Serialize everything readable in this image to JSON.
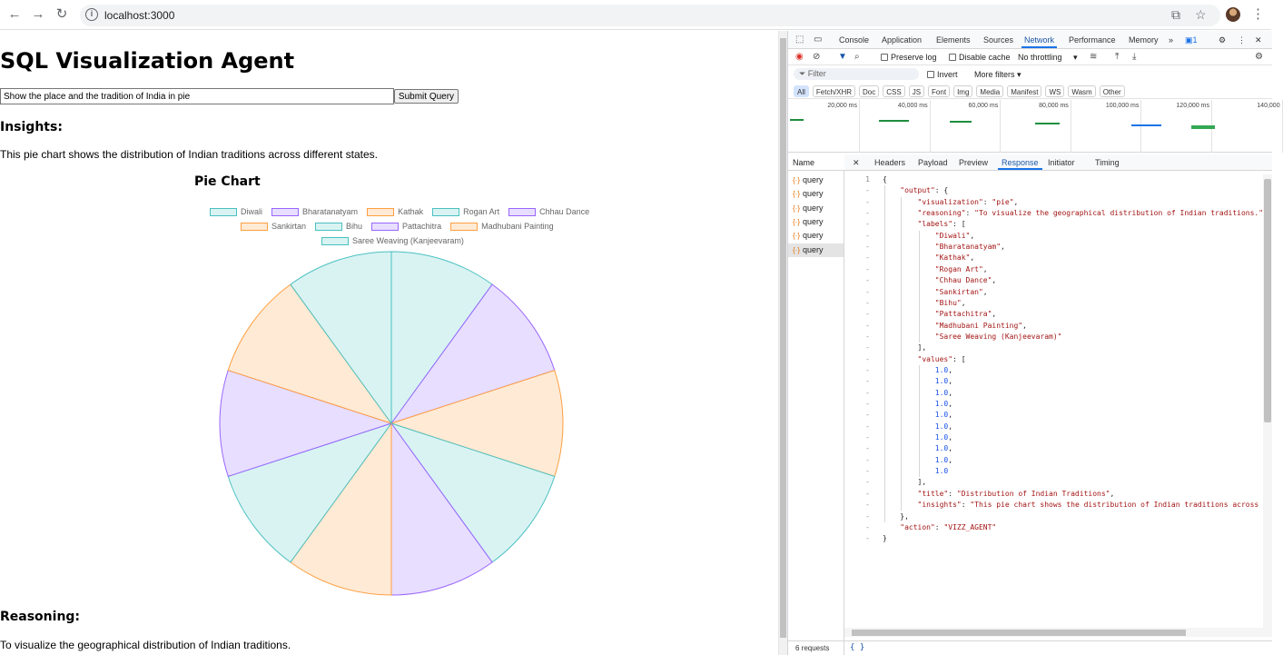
{
  "browser": {
    "url": "localhost:3000"
  },
  "app": {
    "title": "SQL Visualization Agent",
    "query_value": "Show the place and the tradition of India in pie",
    "submit_label": "Submit Query",
    "insights_heading": "Insights:",
    "insights_text": "This pie chart shows the distribution of Indian traditions across different states.",
    "chart_heading": "Pie Chart",
    "reasoning_heading": "Reasoning:",
    "reasoning_text": "To visualize the geographical distribution of Indian traditions."
  },
  "chart_data": {
    "type": "pie",
    "title": "Pie Chart",
    "categories": [
      "Diwali",
      "Bharatanatyam",
      "Kathak",
      "Rogan Art",
      "Chhau Dance",
      "Sankirtan",
      "Bihu",
      "Pattachitra",
      "Madhubani Painting",
      "Saree Weaving (Kanjeevaram)"
    ],
    "values": [
      1.0,
      1.0,
      1.0,
      1.0,
      1.0,
      1.0,
      1.0,
      1.0,
      1.0,
      1.0
    ],
    "legend": "top",
    "colors": {
      "teal_fill": "#d9f3f3",
      "teal_stroke": "#4bc0c0",
      "purple_fill": "#e8deff",
      "purple_stroke": "#9966ff",
      "orange_fill": "#ffead5",
      "orange_stroke": "#ff9f40"
    }
  },
  "devtools": {
    "tabs": [
      "Console",
      "Application",
      "Elements",
      "Sources",
      "Network",
      "Performance",
      "Memory"
    ],
    "active_tab": "Network",
    "issues_count": "1",
    "toolbar": {
      "preserve_log": "Preserve log",
      "disable_cache": "Disable cache",
      "throttling": "No throttling"
    },
    "filter": {
      "placeholder": "Filter",
      "invert": "Invert",
      "more_filters": "More filters"
    },
    "types": [
      "All",
      "Fetch/XHR",
      "Doc",
      "CSS",
      "JS",
      "Font",
      "Img",
      "Media",
      "Manifest",
      "WS",
      "Wasm",
      "Other"
    ],
    "timeline_labels": [
      "20,000 ms",
      "40,000 ms",
      "60,000 ms",
      "80,000 ms",
      "100,000 ms",
      "120,000 ms",
      "140,000"
    ],
    "requests_header": "Name",
    "requests": [
      "query",
      "query",
      "query",
      "query",
      "query",
      "query"
    ],
    "requests_count": "6 requests",
    "response_tabs": [
      "Headers",
      "Payload",
      "Preview",
      "Response",
      "Initiator",
      "Timing"
    ],
    "active_response_tab": "Response",
    "response_lines": [
      {
        "n": "1",
        "text": "{"
      },
      {
        "n": "-",
        "text": "    \"output\": {"
      },
      {
        "n": "-",
        "text": "        \"visualization\": \"pie\","
      },
      {
        "n": "-",
        "text": "        \"reasoning\": \"To visualize the geographical distribution of Indian traditions.\""
      },
      {
        "n": "-",
        "text": "        \"labels\": ["
      },
      {
        "n": "-",
        "text": "            \"Diwali\","
      },
      {
        "n": "-",
        "text": "            \"Bharatanatyam\","
      },
      {
        "n": "-",
        "text": "            \"Kathak\","
      },
      {
        "n": "-",
        "text": "            \"Rogan Art\","
      },
      {
        "n": "-",
        "text": "            \"Chhau Dance\","
      },
      {
        "n": "-",
        "text": "            \"Sankirtan\","
      },
      {
        "n": "-",
        "text": "            \"Bihu\","
      },
      {
        "n": "-",
        "text": "            \"Pattachitra\","
      },
      {
        "n": "-",
        "text": "            \"Madhubani Painting\","
      },
      {
        "n": "-",
        "text": "            \"Saree Weaving (Kanjeevaram)\""
      },
      {
        "n": "-",
        "text": "        ],"
      },
      {
        "n": "-",
        "text": "        \"values\": ["
      },
      {
        "n": "-",
        "text": "            1.0,"
      },
      {
        "n": "-",
        "text": "            1.0,"
      },
      {
        "n": "-",
        "text": "            1.0,"
      },
      {
        "n": "-",
        "text": "            1.0,"
      },
      {
        "n": "-",
        "text": "            1.0,"
      },
      {
        "n": "-",
        "text": "            1.0,"
      },
      {
        "n": "-",
        "text": "            1.0,"
      },
      {
        "n": "-",
        "text": "            1.0,"
      },
      {
        "n": "-",
        "text": "            1.0,"
      },
      {
        "n": "-",
        "text": "            1.0"
      },
      {
        "n": "-",
        "text": "        ],"
      },
      {
        "n": "-",
        "text": "        \"title\": \"Distribution of Indian Traditions\","
      },
      {
        "n": "-",
        "text": "        \"insights\": \"This pie chart shows the distribution of Indian traditions across"
      },
      {
        "n": "-",
        "text": "    },"
      },
      {
        "n": "-",
        "text": "    \"action\": \"VIZZ_AGENT\""
      },
      {
        "n": "-",
        "text": "}"
      }
    ],
    "footer_icon": "{ }"
  }
}
